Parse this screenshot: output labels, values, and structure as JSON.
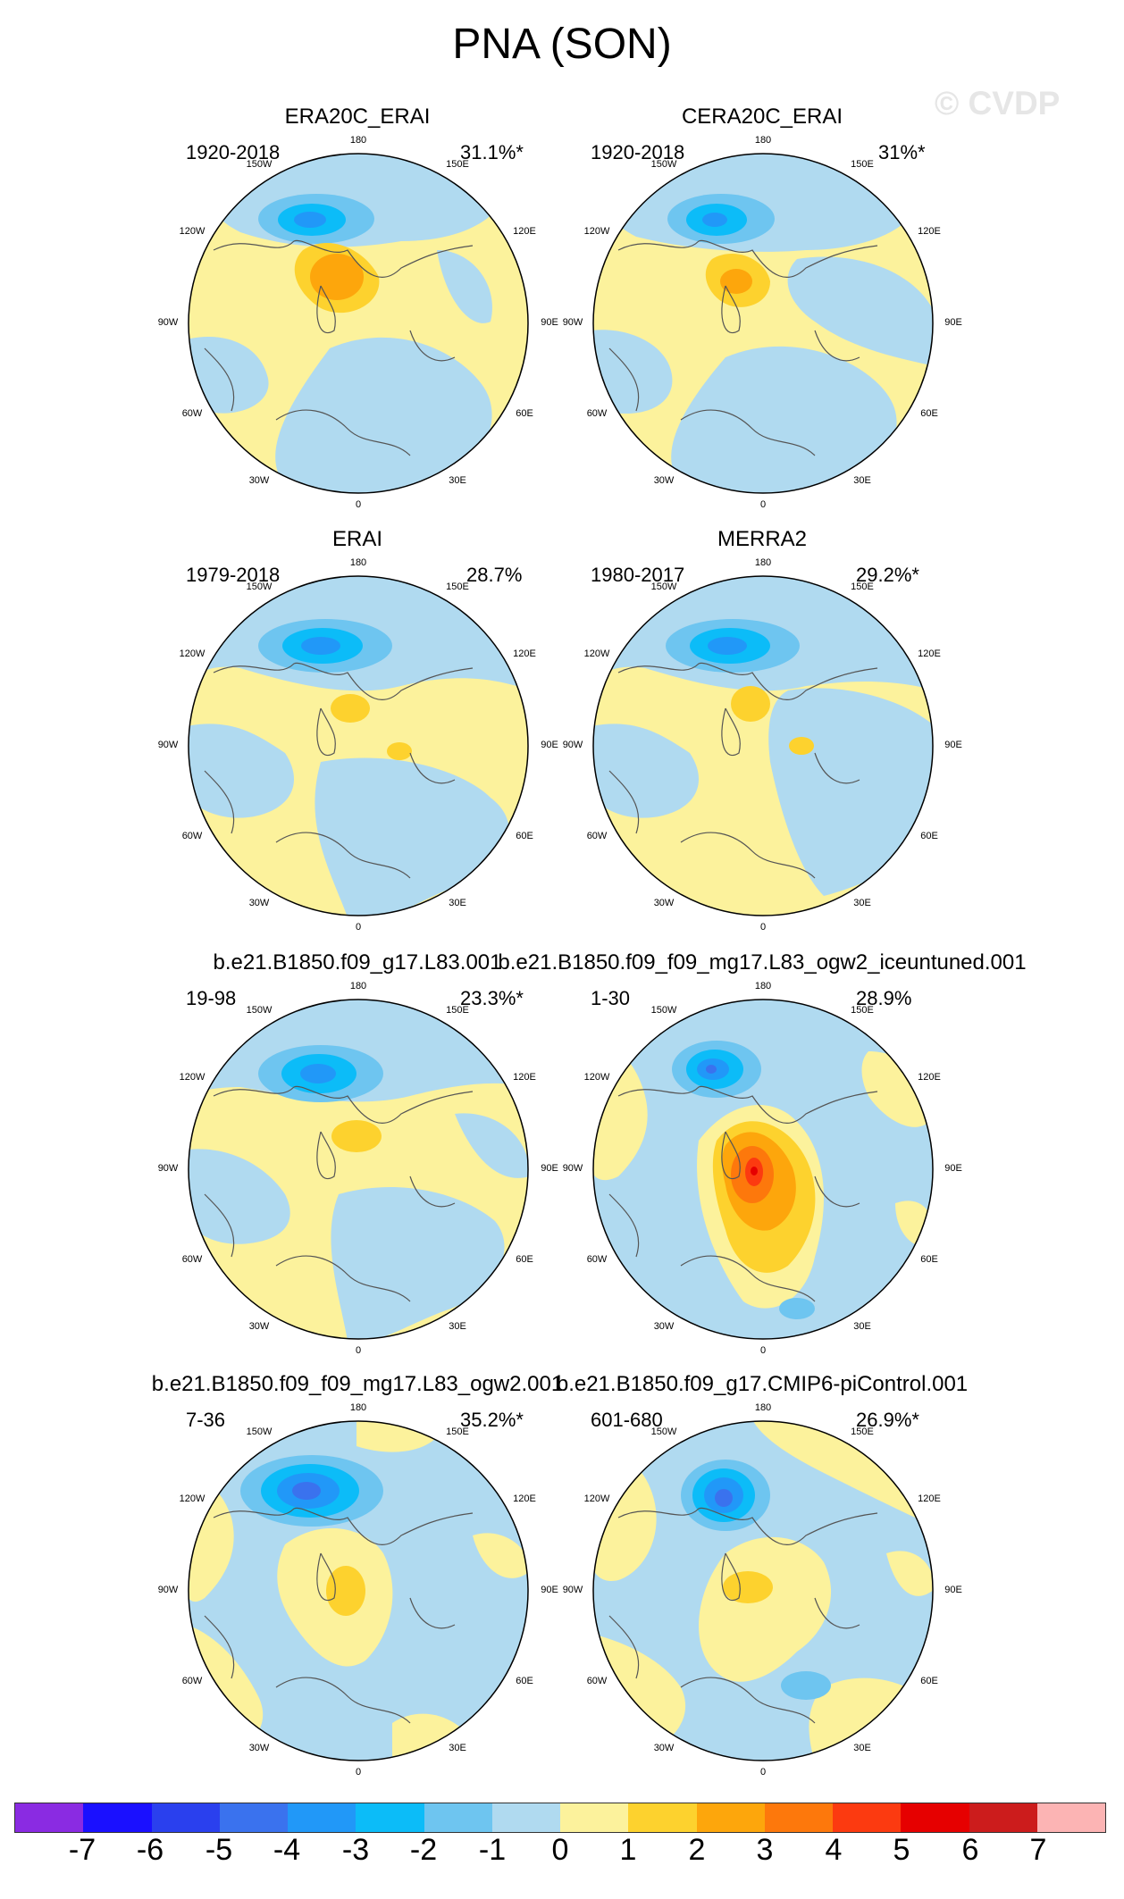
{
  "figure": {
    "title": "PNA (SON)",
    "watermark": "© CVDP",
    "longitude_labels": [
      "180",
      "150E",
      "120E",
      "90E",
      "60E",
      "30E",
      "0",
      "30W",
      "60W",
      "90W",
      "120W",
      "150W"
    ]
  },
  "panels": [
    {
      "title": "ERA20C_ERAI",
      "years": "1920-2018",
      "percent": "31.1%*"
    },
    {
      "title": "CERA20C_ERAI",
      "years": "1920-2018",
      "percent": "31%*"
    },
    {
      "title": "ERAI",
      "years": "1979-2018",
      "percent": "28.7%"
    },
    {
      "title": "MERRA2",
      "years": "1980-2017",
      "percent": "29.2%*"
    },
    {
      "title": "b.e21.B1850.f09_g17.L83.001",
      "years": "19-98",
      "percent": "23.3%*"
    },
    {
      "title": "b.e21.B1850.f09_f09_mg17.L83_ogw2_iceuntuned.001",
      "years": "1-30",
      "percent": "28.9%"
    },
    {
      "title": "b.e21.B1850.f09_f09_mg17.L83_ogw2.001",
      "years": "7-36",
      "percent": "35.2%*"
    },
    {
      "title": "b.e21.B1850.f09_g17.CMIP6-piControl.001",
      "years": "601-680",
      "percent": "26.9%*"
    }
  ],
  "colorbar": {
    "tick_labels": [
      "-7",
      "-6",
      "-5",
      "-4",
      "-3",
      "-2",
      "-1",
      "0",
      "1",
      "2",
      "3",
      "4",
      "5",
      "6",
      "7"
    ],
    "colors": [
      "#8a2be2",
      "#1a10ff",
      "#2a40ee",
      "#3a72ee",
      "#2198f8",
      "#0cbcf8",
      "#6ec5f0",
      "#b0daf0",
      "#fcf29c",
      "#fdd22e",
      "#fda60c",
      "#fd780c",
      "#fc3a10",
      "#e60000",
      "#cc1c1c",
      "#fcb4b4"
    ]
  }
}
